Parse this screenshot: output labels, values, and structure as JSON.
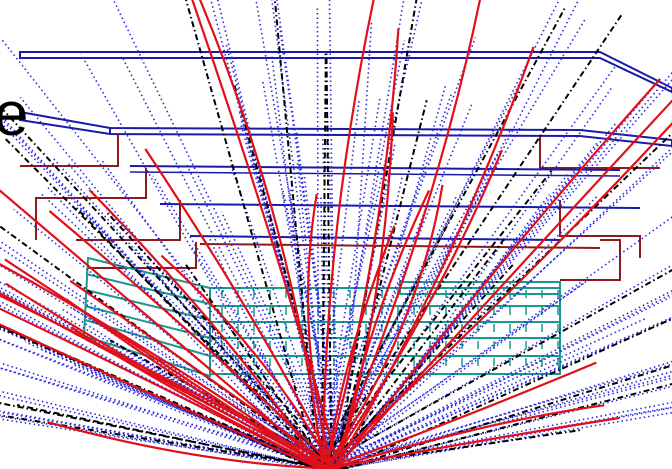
{
  "overlay": {
    "partial_text": "e"
  },
  "colors": {
    "background": "#ffffff",
    "frame_blue": "#1a1aa8",
    "frame_red": "#8b1a1a",
    "detector_teal": "#1a9a8a",
    "track_blue_dotted": "#2a2ae0",
    "track_red": "#e0101a",
    "track_black_dashdot": "#000000"
  },
  "legend_marks": {
    "track_styles": [
      "blue-dotted",
      "black-dashdot",
      "red-solid"
    ]
  }
}
